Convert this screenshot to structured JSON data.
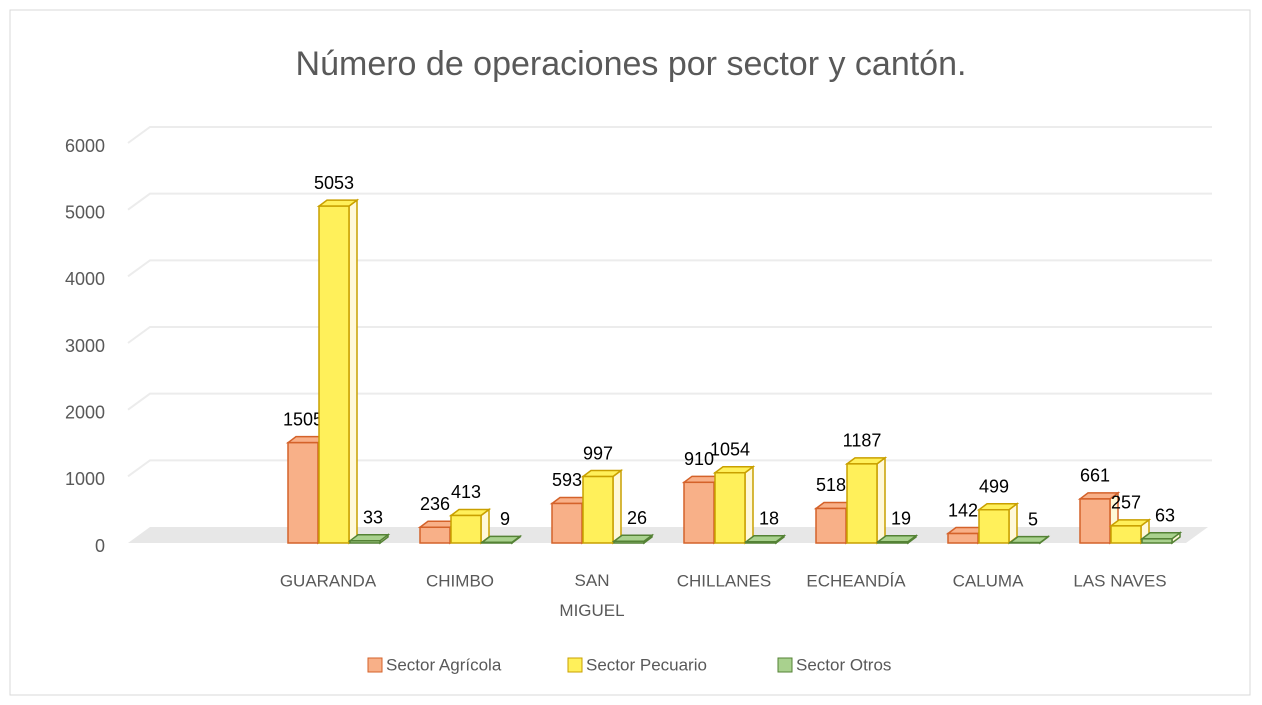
{
  "chart_data": {
    "type": "bar3d",
    "title": "Número de operaciones por sector y cantón.",
    "categories": [
      "GUARANDA",
      "CHIMBO",
      "SAN MIGUEL",
      "CHILLANES",
      "ECHEANDÍA",
      "CALUMA",
      "LAS NAVES"
    ],
    "series": [
      {
        "name": "Sector Agrícola",
        "color": "#f8b088",
        "values": [
          1505,
          236,
          593,
          910,
          518,
          142,
          661
        ]
      },
      {
        "name": "Sector Pecuario",
        "color": "#fff05a",
        "values": [
          5053,
          413,
          997,
          1054,
          1187,
          499,
          257
        ]
      },
      {
        "name": "Sector Otros",
        "color": "#a9d18e",
        "values": [
          33,
          9,
          26,
          18,
          19,
          5,
          63
        ]
      }
    ],
    "ylim": [
      0,
      6000
    ],
    "yticks": [
      0,
      1000,
      2000,
      3000,
      4000,
      5000,
      6000
    ],
    "grid": true,
    "legend": "bottom"
  }
}
